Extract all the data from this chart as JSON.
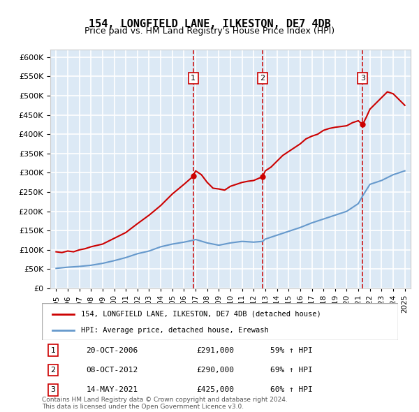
{
  "title": "154, LONGFIELD LANE, ILKESTON, DE7 4DB",
  "subtitle": "Price paid vs. HM Land Registry's House Price Index (HPI)",
  "ylabel": "",
  "ylim": [
    0,
    620000
  ],
  "yticks": [
    0,
    50000,
    100000,
    150000,
    200000,
    250000,
    300000,
    350000,
    400000,
    450000,
    500000,
    550000,
    600000
  ],
  "background_color": "#dce9f5",
  "plot_bg": "#dce9f5",
  "grid_color": "#ffffff",
  "legend_line1": "154, LONGFIELD LANE, ILKESTON, DE7 4DB (detached house)",
  "legend_line2": "HPI: Average price, detached house, Erewash",
  "line1_color": "#cc0000",
  "line2_color": "#6699cc",
  "vline_color": "#cc0000",
  "marker_color": "#cc0000",
  "footnote": "Contains HM Land Registry data © Crown copyright and database right 2024.\nThis data is licensed under the Open Government Licence v3.0.",
  "sales": [
    {
      "num": 1,
      "date": "20-OCT-2006",
      "price": 291000,
      "pct": "59% ↑ HPI",
      "x_year": 2006.8
    },
    {
      "num": 2,
      "date": "08-OCT-2012",
      "price": 290000,
      "pct": "69% ↑ HPI",
      "x_year": 2012.77
    },
    {
      "num": 3,
      "date": "14-MAY-2021",
      "price": 425000,
      "pct": "60% ↑ HPI",
      "x_year": 2021.37
    }
  ],
  "hpi_years": [
    1995,
    1996,
    1997,
    1998,
    1999,
    2000,
    2001,
    2002,
    2003,
    2004,
    2005,
    2006,
    2006.8,
    2007,
    2008,
    2009,
    2010,
    2011,
    2012,
    2012.77,
    2013,
    2014,
    2015,
    2016,
    2017,
    2018,
    2019,
    2020,
    2021,
    2021.37,
    2022,
    2023,
    2024,
    2025
  ],
  "hpi_values": [
    52000,
    55000,
    57000,
    60000,
    65000,
    72000,
    80000,
    90000,
    97000,
    108000,
    115000,
    120000,
    125000,
    127000,
    118000,
    112000,
    118000,
    122000,
    120000,
    122000,
    128000,
    138000,
    148000,
    158000,
    170000,
    180000,
    190000,
    200000,
    220000,
    240000,
    270000,
    280000,
    295000,
    305000
  ],
  "price_years": [
    1995,
    1995.5,
    1996,
    1996.5,
    1997,
    1997.5,
    1998,
    1999,
    2000,
    2001,
    2002,
    2003,
    2004,
    2005,
    2006,
    2006.8,
    2007,
    2007.5,
    2008,
    2008.5,
    2009,
    2009.5,
    2010,
    2010.5,
    2011,
    2011.5,
    2012,
    2012.77,
    2013,
    2013.5,
    2014,
    2014.5,
    2015,
    2015.5,
    2016,
    2016.5,
    2017,
    2017.5,
    2018,
    2018.5,
    2019,
    2019.5,
    2020,
    2020.5,
    2021,
    2021.37,
    2021.7,
    2022,
    2022.5,
    2023,
    2023.5,
    2024,
    2024.5,
    2025
  ],
  "price_values": [
    95000,
    93000,
    97000,
    95000,
    100000,
    103000,
    108000,
    115000,
    130000,
    145000,
    168000,
    190000,
    215000,
    245000,
    270000,
    291000,
    305000,
    295000,
    275000,
    260000,
    258000,
    255000,
    265000,
    270000,
    275000,
    278000,
    280000,
    290000,
    305000,
    315000,
    330000,
    345000,
    355000,
    365000,
    375000,
    388000,
    395000,
    400000,
    410000,
    415000,
    418000,
    420000,
    422000,
    430000,
    435000,
    425000,
    445000,
    465000,
    480000,
    495000,
    510000,
    505000,
    490000,
    475000
  ],
  "xmin": 1994.5,
  "xmax": 2025.5,
  "xtick_years": [
    1995,
    1996,
    1997,
    1998,
    1999,
    2000,
    2001,
    2002,
    2003,
    2004,
    2005,
    2006,
    2007,
    2008,
    2009,
    2010,
    2011,
    2012,
    2013,
    2014,
    2015,
    2016,
    2017,
    2018,
    2019,
    2020,
    2021,
    2022,
    2023,
    2024,
    2025
  ]
}
